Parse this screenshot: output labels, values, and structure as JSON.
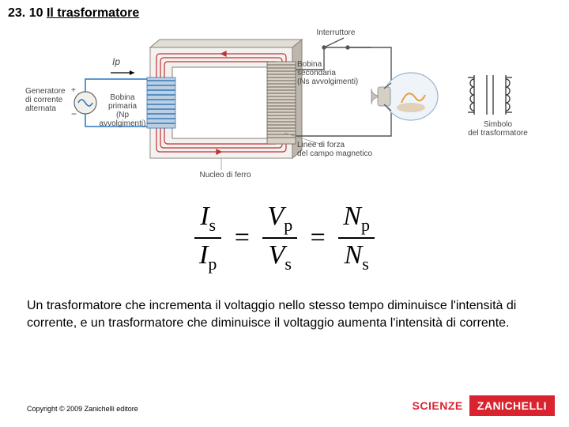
{
  "title_prefix": "23. 10 ",
  "title_main": "Il trasformatore",
  "diagram": {
    "generator": "Generatore\ndi corrente\nalternata",
    "ip": "Ip",
    "primary_coil": "Bobina\nprimaria\n(Np avvolgimenti)",
    "iron_core": "Nucleo di ferro",
    "switch": "Interruttore",
    "secondary_coil": "Bobina\nsecondaria\n(Ns avvolgimenti)",
    "field_lines": "Linee di forza\ndel campo magnetico",
    "symbol": "Simbolo\ndel trasformatore",
    "colors": {
      "core": "#d0cbc3",
      "core_edge": "#888078",
      "flux": "#c23030",
      "generator_body": "#e8e5df",
      "primary_wire": "#3a78b5",
      "secondary_wire": "#6a6055",
      "bulb_glass": "#bcd6e8",
      "filament": "#e6a040"
    }
  },
  "formula": {
    "Is": "I",
    "Is_sub": "s",
    "Ip": "I",
    "Ip_sub": "p",
    "Vp": "V",
    "Vp_sub": "p",
    "Vs": "V",
    "Vs_sub": "s",
    "Np": "N",
    "Np_sub": "p",
    "Ns": "N",
    "Ns_sub": "s",
    "eq": "="
  },
  "body_text": "Un trasformatore che incrementa il voltaggio nello stesso tempo diminuisce l'intensità di corrente, e un trasformatore che diminuisce il voltaggio aumenta l'intensità di corrente.",
  "copyright": "Copyright © 2009 Zanichelli editore",
  "footer": {
    "scienze": "SCIENZE",
    "brand": "ZANICHELLI"
  }
}
